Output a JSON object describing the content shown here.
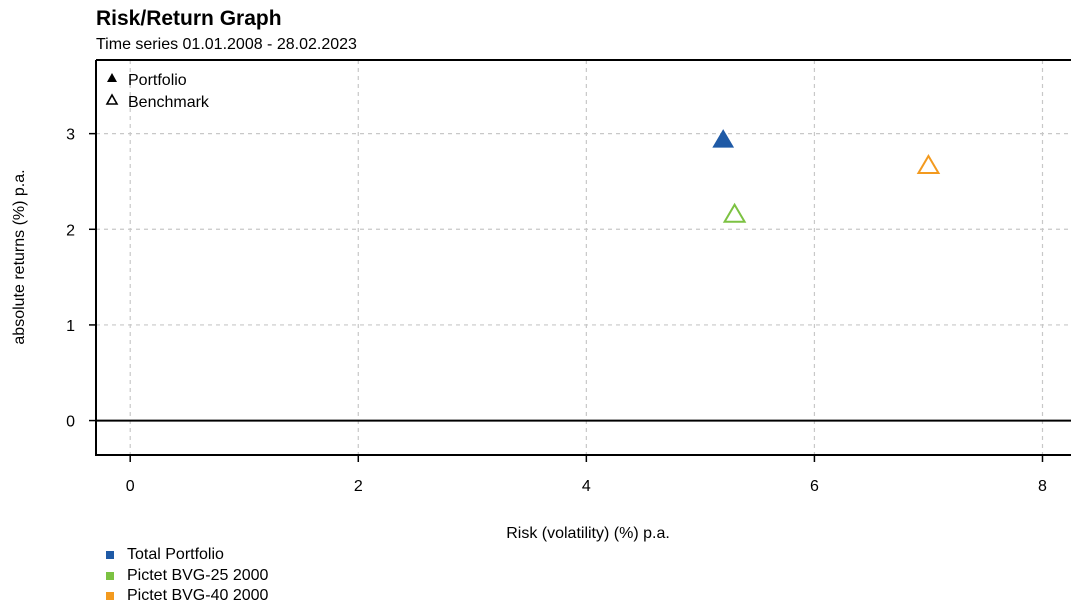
{
  "title": "Risk/Return Graph",
  "subtitle": "Time series 01.01.2008 - 28.02.2023",
  "chart_data": {
    "type": "scatter",
    "xlabel": "Risk (volatility) (%) p.a.",
    "ylabel": "absolute returns (%) p.a.",
    "xlim": [
      -0.3,
      8.25
    ],
    "ylim": [
      -0.36,
      3.77
    ],
    "x_ticks": [
      "0",
      "2",
      "4",
      "6",
      "8"
    ],
    "y_ticks": [
      "0",
      "1",
      "2",
      "3"
    ],
    "grid": true,
    "legend_shapes": {
      "position": "top-left",
      "entries": [
        {
          "label": "Portfolio",
          "marker": "filled-triangle"
        },
        {
          "label": "Benchmark",
          "marker": "open-triangle"
        }
      ]
    },
    "series": [
      {
        "name": "Total Portfolio",
        "color": "#1f5aa6",
        "marker": "filled-triangle",
        "x": 5.2,
        "y": 2.93
      },
      {
        "name": "Pictet BVG-25 2000",
        "color": "#7cc242",
        "marker": "open-triangle",
        "x": 5.3,
        "y": 2.15
      },
      {
        "name": "Pictet BVG-40 2000",
        "color": "#f39a1f",
        "marker": "open-triangle",
        "x": 7.0,
        "y": 2.66
      }
    ]
  }
}
